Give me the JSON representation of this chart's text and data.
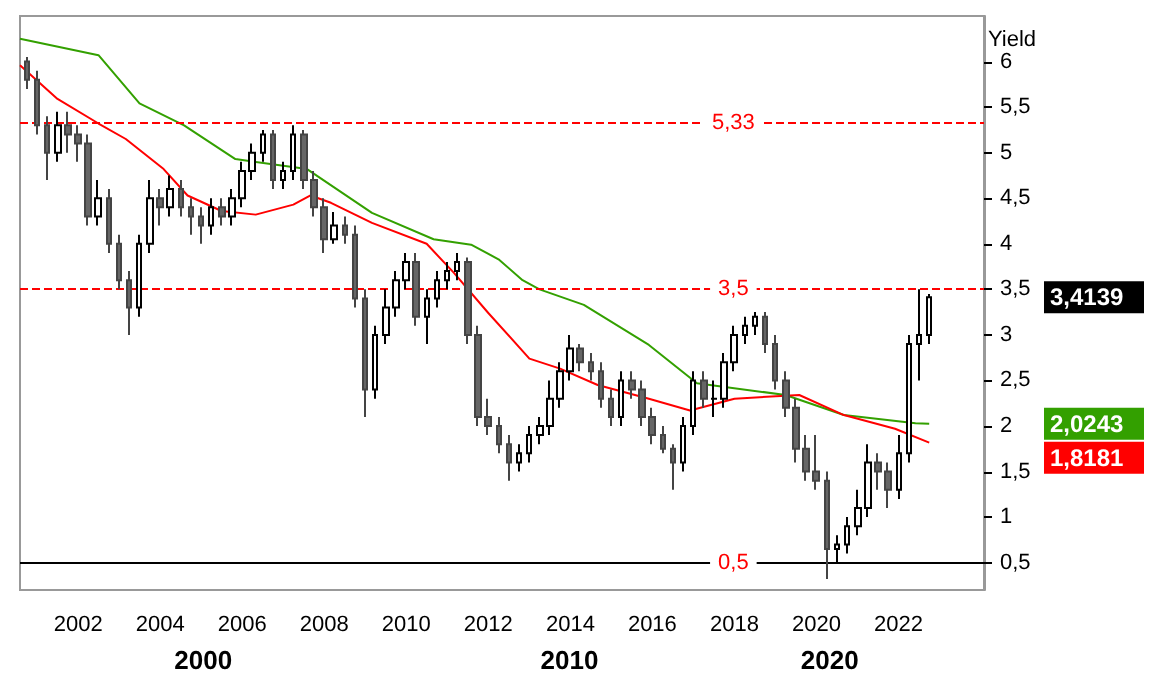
{
  "chart_data": {
    "type": "candlestick",
    "ylabel": "Yield",
    "x": [
      "2000-10",
      "2001-01",
      "2001-04",
      "2001-07",
      "2001-10",
      "2002-01",
      "2002-04",
      "2002-07",
      "2002-10",
      "2003-01",
      "2003-04",
      "2003-07",
      "2003-10",
      "2004-01",
      "2004-04",
      "2004-07",
      "2004-10",
      "2005-01",
      "2005-04",
      "2005-07",
      "2005-10",
      "2006-01",
      "2006-04",
      "2006-07",
      "2006-10",
      "2007-01",
      "2007-04",
      "2007-07",
      "2007-10",
      "2008-01",
      "2008-04",
      "2008-07",
      "2008-10",
      "2009-01",
      "2009-04",
      "2009-07",
      "2009-10",
      "2010-01",
      "2010-04",
      "2010-07",
      "2010-10",
      "2011-01",
      "2011-04",
      "2011-07",
      "2011-10",
      "2012-01",
      "2012-04",
      "2012-07",
      "2012-10",
      "2013-01",
      "2013-04",
      "2013-07",
      "2013-10",
      "2014-01",
      "2014-04",
      "2014-07",
      "2014-10",
      "2015-01",
      "2015-04",
      "2015-07",
      "2015-10",
      "2016-01",
      "2016-04",
      "2016-07",
      "2016-10",
      "2017-01",
      "2017-04",
      "2017-07",
      "2017-10",
      "2018-01",
      "2018-04",
      "2018-07",
      "2018-10",
      "2019-01",
      "2019-04",
      "2019-07",
      "2019-10",
      "2020-01",
      "2020-04",
      "2020-07",
      "2020-10",
      "2021-01",
      "2021-04",
      "2021-07",
      "2021-10",
      "2022-01",
      "2022-04",
      "2022-07",
      "2022-10"
    ],
    "ohlc": [
      [
        6.0,
        6.05,
        5.7,
        5.8
      ],
      [
        5.8,
        5.9,
        5.2,
        5.3
      ],
      [
        5.3,
        5.4,
        4.7,
        5.0
      ],
      [
        5.0,
        5.45,
        4.9,
        5.3
      ],
      [
        5.3,
        5.45,
        5.0,
        5.2
      ],
      [
        5.2,
        5.3,
        4.9,
        5.1
      ],
      [
        5.1,
        5.2,
        4.2,
        4.3
      ],
      [
        4.3,
        4.7,
        4.2,
        4.5
      ],
      [
        4.5,
        4.6,
        3.9,
        4.0
      ],
      [
        4.0,
        4.1,
        3.5,
        3.6
      ],
      [
        3.6,
        3.7,
        3.0,
        3.3
      ],
      [
        3.3,
        4.1,
        3.2,
        4.0
      ],
      [
        4.0,
        4.7,
        3.9,
        4.5
      ],
      [
        4.5,
        4.6,
        4.2,
        4.4
      ],
      [
        4.4,
        4.75,
        4.3,
        4.6
      ],
      [
        4.6,
        4.7,
        4.3,
        4.4
      ],
      [
        4.4,
        4.5,
        4.1,
        4.3
      ],
      [
        4.3,
        4.4,
        4.0,
        4.2
      ],
      [
        4.2,
        4.5,
        4.1,
        4.4
      ],
      [
        4.4,
        4.5,
        4.2,
        4.3
      ],
      [
        4.3,
        4.6,
        4.2,
        4.5
      ],
      [
        4.5,
        4.9,
        4.4,
        4.8
      ],
      [
        4.8,
        5.1,
        4.7,
        5.0
      ],
      [
        5.0,
        5.25,
        4.9,
        5.2
      ],
      [
        5.2,
        5.25,
        4.6,
        4.7
      ],
      [
        4.7,
        4.9,
        4.6,
        4.8
      ],
      [
        4.8,
        5.3,
        4.7,
        5.2
      ],
      [
        5.2,
        5.25,
        4.6,
        4.7
      ],
      [
        4.7,
        4.8,
        4.3,
        4.4
      ],
      [
        4.4,
        4.5,
        3.9,
        4.05
      ],
      [
        4.05,
        4.35,
        4.0,
        4.2
      ],
      [
        4.2,
        4.3,
        4.0,
        4.1
      ],
      [
        4.1,
        4.2,
        3.3,
        3.4
      ],
      [
        3.4,
        3.5,
        2.1,
        2.4
      ],
      [
        2.4,
        3.1,
        2.3,
        3.0
      ],
      [
        3.0,
        3.5,
        2.9,
        3.3
      ],
      [
        3.3,
        3.7,
        3.2,
        3.6
      ],
      [
        3.6,
        3.9,
        3.5,
        3.8
      ],
      [
        3.8,
        3.9,
        3.1,
        3.2
      ],
      [
        3.2,
        3.5,
        2.9,
        3.4
      ],
      [
        3.4,
        3.7,
        3.3,
        3.6
      ],
      [
        3.6,
        3.8,
        3.5,
        3.7
      ],
      [
        3.7,
        3.9,
        3.6,
        3.8
      ],
      [
        3.8,
        3.85,
        2.9,
        3.0
      ],
      [
        3.0,
        3.1,
        2.0,
        2.1
      ],
      [
        2.1,
        2.3,
        1.9,
        2.0
      ],
      [
        2.0,
        2.1,
        1.7,
        1.8
      ],
      [
        1.8,
        1.9,
        1.4,
        1.6
      ],
      [
        1.6,
        1.8,
        1.5,
        1.7
      ],
      [
        1.7,
        2.0,
        1.6,
        1.9
      ],
      [
        1.9,
        2.1,
        1.8,
        2.0
      ],
      [
        2.0,
        2.5,
        1.9,
        2.3
      ],
      [
        2.3,
        2.7,
        2.2,
        2.6
      ],
      [
        2.6,
        3.0,
        2.5,
        2.85
      ],
      [
        2.85,
        2.9,
        2.6,
        2.7
      ],
      [
        2.7,
        2.8,
        2.5,
        2.6
      ],
      [
        2.6,
        2.7,
        2.2,
        2.3
      ],
      [
        2.3,
        2.4,
        2.0,
        2.1
      ],
      [
        2.1,
        2.6,
        2.0,
        2.5
      ],
      [
        2.5,
        2.6,
        2.3,
        2.4
      ],
      [
        2.4,
        2.5,
        2.0,
        2.1
      ],
      [
        2.1,
        2.2,
        1.8,
        1.9
      ],
      [
        1.9,
        2.0,
        1.7,
        1.75
      ],
      [
        1.75,
        1.8,
        1.3,
        1.6
      ],
      [
        1.6,
        2.1,
        1.5,
        2.0
      ],
      [
        2.0,
        2.6,
        1.9,
        2.5
      ],
      [
        2.5,
        2.6,
        2.2,
        2.3
      ],
      [
        2.3,
        2.5,
        2.1,
        2.3
      ],
      [
        2.3,
        2.8,
        2.2,
        2.7
      ],
      [
        2.7,
        3.1,
        2.6,
        3.0
      ],
      [
        3.0,
        3.2,
        2.9,
        3.1
      ],
      [
        3.1,
        3.25,
        3.0,
        3.2
      ],
      [
        3.2,
        3.25,
        2.8,
        2.9
      ],
      [
        2.9,
        3.0,
        2.4,
        2.5
      ],
      [
        2.5,
        2.6,
        2.1,
        2.2
      ],
      [
        2.2,
        2.3,
        1.6,
        1.75
      ],
      [
        1.75,
        1.9,
        1.4,
        1.5
      ],
      [
        1.5,
        1.9,
        1.3,
        1.4
      ],
      [
        1.4,
        1.5,
        0.32,
        0.65
      ],
      [
        0.65,
        0.8,
        0.5,
        0.7
      ],
      [
        0.7,
        1.0,
        0.6,
        0.9
      ],
      [
        0.9,
        1.3,
        0.8,
        1.1
      ],
      [
        1.1,
        1.8,
        1.0,
        1.6
      ],
      [
        1.6,
        1.7,
        1.3,
        1.5
      ],
      [
        1.5,
        1.6,
        1.1,
        1.3
      ],
      [
        1.3,
        1.9,
        1.2,
        1.7
      ],
      [
        1.7,
        3.0,
        1.6,
        2.9
      ],
      [
        2.9,
        3.5,
        2.5,
        3.0
      ],
      [
        3.0,
        3.45,
        2.9,
        3.4139
      ]
    ],
    "series": [
      {
        "type": "line",
        "color": "#33a000",
        "x": [
          "2000-08",
          "2002-07",
          "2003-07",
          "2004-08",
          "2005-11",
          "2007-08",
          "2009-03",
          "2010-09",
          "2011-08",
          "2012-04",
          "2012-11",
          "2013-04",
          "2014-05",
          "2015-12",
          "2017-02",
          "2019-04",
          "2020-09",
          "2022-06",
          "2022-10"
        ],
        "values": [
          6.25,
          6.07,
          5.54,
          5.3,
          4.93,
          4.82,
          4.34,
          4.05,
          3.99,
          3.83,
          3.6,
          3.5,
          3.33,
          2.89,
          2.47,
          2.34,
          2.12,
          2.03,
          2.0243
        ]
      },
      {
        "type": "line",
        "color": "#ff0000",
        "x": [
          "2000-08",
          "2001-07",
          "2002-07",
          "2003-03",
          "2004-02",
          "2004-09",
          "2005-07",
          "2006-05",
          "2007-04",
          "2007-09",
          "2008-03",
          "2009-03",
          "2010-07",
          "2011-03",
          "2012-01",
          "2013-01",
          "2013-10",
          "2014-09",
          "2015-12",
          "2016-12",
          "2018-01",
          "2019-08",
          "2020-09",
          "2021-12",
          "2022-10"
        ],
        "values": [
          5.96,
          5.59,
          5.32,
          5.15,
          4.82,
          4.53,
          4.36,
          4.32,
          4.43,
          4.53,
          4.45,
          4.23,
          4.0,
          3.68,
          3.24,
          2.74,
          2.63,
          2.45,
          2.3,
          2.17,
          2.3,
          2.34,
          2.12,
          1.97,
          1.8181
        ]
      }
    ],
    "xlim": [
      "2000-08",
      "2024-02"
    ],
    "xticks": [
      "2002",
      "2004",
      "2006",
      "2008",
      "2010",
      "2012",
      "2014",
      "2016",
      "2018",
      "2020",
      "2022"
    ],
    "ylim": [
      0.2,
      6.5
    ],
    "yticks": [
      {
        "value": 0.5,
        "label": "0,5"
      },
      1,
      {
        "value": 1.5,
        "label": "1,5"
      },
      2,
      {
        "value": 2.5,
        "label": "2,5"
      },
      3,
      {
        "value": 3.5,
        "label": "3,5"
      },
      4,
      {
        "value": 4.5,
        "label": "4,5"
      },
      5,
      {
        "value": 5.5,
        "label": "5,5"
      },
      6
    ],
    "ref_lines": [
      {
        "axis": "y",
        "value": 5.33,
        "label": "5,33",
        "color": "#ff0000",
        "line_style": "dashed"
      },
      {
        "axis": "y",
        "value": 3.5,
        "label": "3,5",
        "color": "#ff0000",
        "line_style": "dashed"
      },
      {
        "axis": "y",
        "value": 0.5,
        "label": "0,5",
        "color": "#000000",
        "line_style": "solid"
      }
    ],
    "annotations": [
      "3,4139",
      "2,0243",
      "1,8181",
      "2000",
      "2010",
      "2020"
    ],
    "grid": false,
    "marker": "none"
  }
}
